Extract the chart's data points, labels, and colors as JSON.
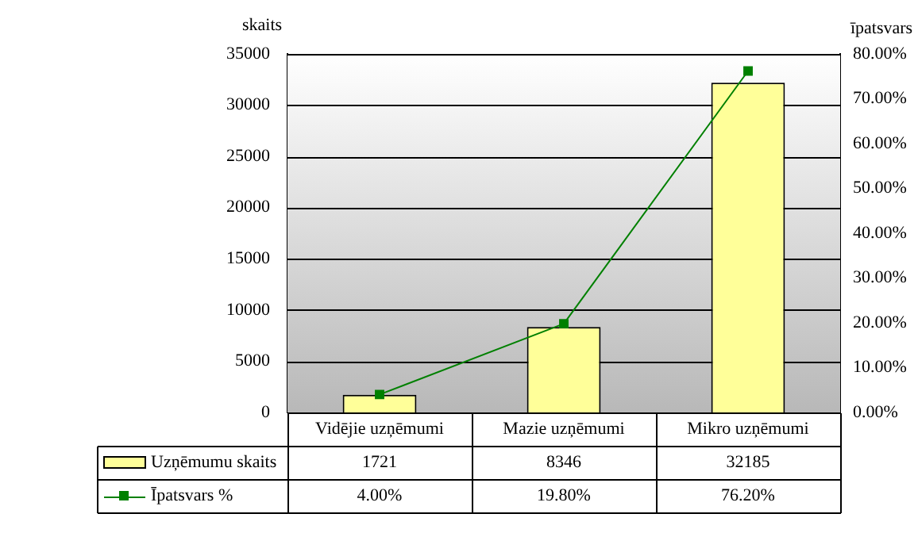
{
  "chart_data": {
    "type": "bar",
    "ylabel": "skaits",
    "y2label": "īpatsvars",
    "categories": [
      "Vidējie uzņēmumi",
      "Mazie uzņēmumi",
      "Mikro uzņēmumi"
    ],
    "series": [
      {
        "name": "Uzņēmumu skaits",
        "color": "#ffff99",
        "values": [
          1721,
          8346,
          32185
        ],
        "value_labels": [
          "1721",
          "8346",
          "32185"
        ]
      },
      {
        "name": "Īpatsvars %",
        "type": "line",
        "axis": "y2",
        "color": "#008000",
        "marker": "square",
        "values": [
          4.0,
          19.8,
          76.2
        ],
        "value_labels": [
          "4.00%",
          "19.80%",
          "76.20%"
        ]
      }
    ],
    "ylim": [
      0,
      35000
    ],
    "yticks": [
      0,
      5000,
      10000,
      15000,
      20000,
      25000,
      30000,
      35000
    ],
    "y2lim": [
      0,
      80
    ],
    "y2ticks": [
      {
        "value": 0,
        "label": "0.00%"
      },
      {
        "value": 10,
        "label": "10.00%"
      },
      {
        "value": 20,
        "label": "20.00%"
      },
      {
        "value": 30,
        "label": "30.00%"
      },
      {
        "value": 40,
        "label": "40.00%"
      },
      {
        "value": 50,
        "label": "50.00%"
      },
      {
        "value": 60,
        "label": "60.00%"
      },
      {
        "value": 70,
        "label": "70.00%"
      },
      {
        "value": 80,
        "label": "80.00%"
      }
    ],
    "grid": "y",
    "legend": "bottom"
  }
}
